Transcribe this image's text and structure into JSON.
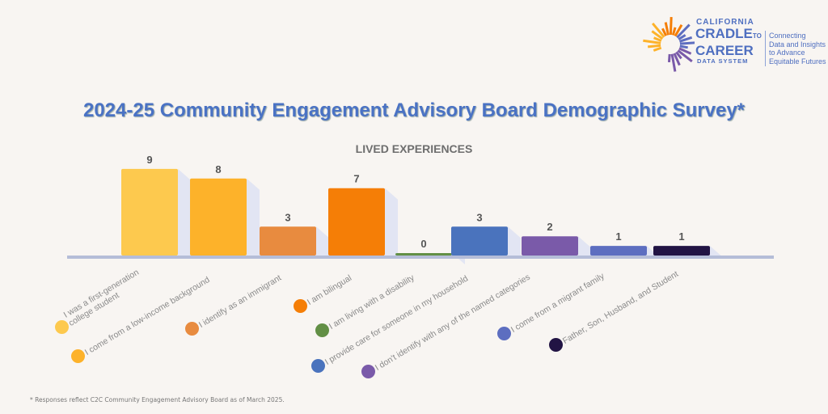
{
  "logo": {
    "line1": "CALIFORNIA",
    "line2": "CRADLE",
    "to": "TO",
    "line3": "CAREER",
    "line4": "DATA SYSTEM",
    "tagline": [
      "Connecting",
      "Data and Insights",
      "to Advance",
      "Equitable Futures"
    ]
  },
  "chart_data": {
    "type": "bar",
    "title": "2024-25 Community Engagement Advisory Board Demographic Survey*",
    "subtitle": "LIVED EXPERIENCES",
    "categories": [
      "I was a first-generation\ncollege student",
      "I come from a low-income background",
      "I identify as an immigrant",
      "I am bilingual",
      "I am living with a disability",
      "I provide care for someone in my household",
      "I don't identify with any of the named categories",
      "I come from a migrant family",
      "Father, Son, Husband, and Student"
    ],
    "values": [
      9,
      8,
      3,
      7,
      0,
      3,
      2,
      1,
      1
    ],
    "colors": [
      "#fdc94e",
      "#fdb22a",
      "#e88b3f",
      "#f57e06",
      "#628f45",
      "#4a73bd",
      "#7a5aa9",
      "#5d6ec0",
      "#221444"
    ],
    "legend_placement": "bottom",
    "ylim": [
      0,
      9
    ]
  },
  "footnote": "* Responses reflect C2C Community Engagement Advisory Board  as of March 2025."
}
